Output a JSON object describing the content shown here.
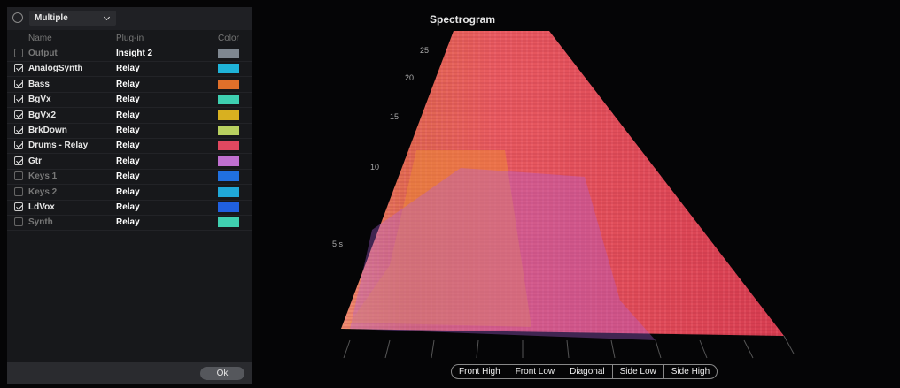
{
  "panel": {
    "mode": "Multiple",
    "columns": [
      "Name",
      "Plug-in",
      "Color"
    ],
    "rows": [
      {
        "name": "Output",
        "plugin": "Insight 2",
        "checked": false,
        "color": "#7f8790"
      },
      {
        "name": "AnalogSynth",
        "plugin": "Relay",
        "checked": true,
        "color": "#1fb3d8"
      },
      {
        "name": "Bass",
        "plugin": "Relay",
        "checked": true,
        "color": "#e0702a"
      },
      {
        "name": "BgVx",
        "plugin": "Relay",
        "checked": true,
        "color": "#3ecfb0"
      },
      {
        "name": "BgVx2",
        "plugin": "Relay",
        "checked": true,
        "color": "#d8b020"
      },
      {
        "name": "BrkDown",
        "plugin": "Relay",
        "checked": true,
        "color": "#b8d060"
      },
      {
        "name": "Drums - Relay",
        "plugin": "Relay",
        "checked": true,
        "color": "#e04860"
      },
      {
        "name": "Gtr",
        "plugin": "Relay",
        "checked": true,
        "color": "#c070d0"
      },
      {
        "name": "Keys 1",
        "plugin": "Relay",
        "checked": false,
        "color": "#2070e0"
      },
      {
        "name": "Keys 2",
        "plugin": "Relay",
        "checked": false,
        "color": "#20a8d8"
      },
      {
        "name": "LdVox",
        "plugin": "Relay",
        "checked": true,
        "color": "#2060e0"
      },
      {
        "name": "Synth",
        "plugin": "Relay",
        "checked": false,
        "color": "#40d0b0"
      }
    ],
    "ok": "Ok"
  },
  "spectrogram": {
    "title": "Spectrogram",
    "axis_labels": [
      "25",
      "20",
      "15",
      "10",
      "5 s"
    ],
    "views": [
      "Front High",
      "Front Low",
      "Diagonal",
      "Side Low",
      "Side High"
    ]
  }
}
